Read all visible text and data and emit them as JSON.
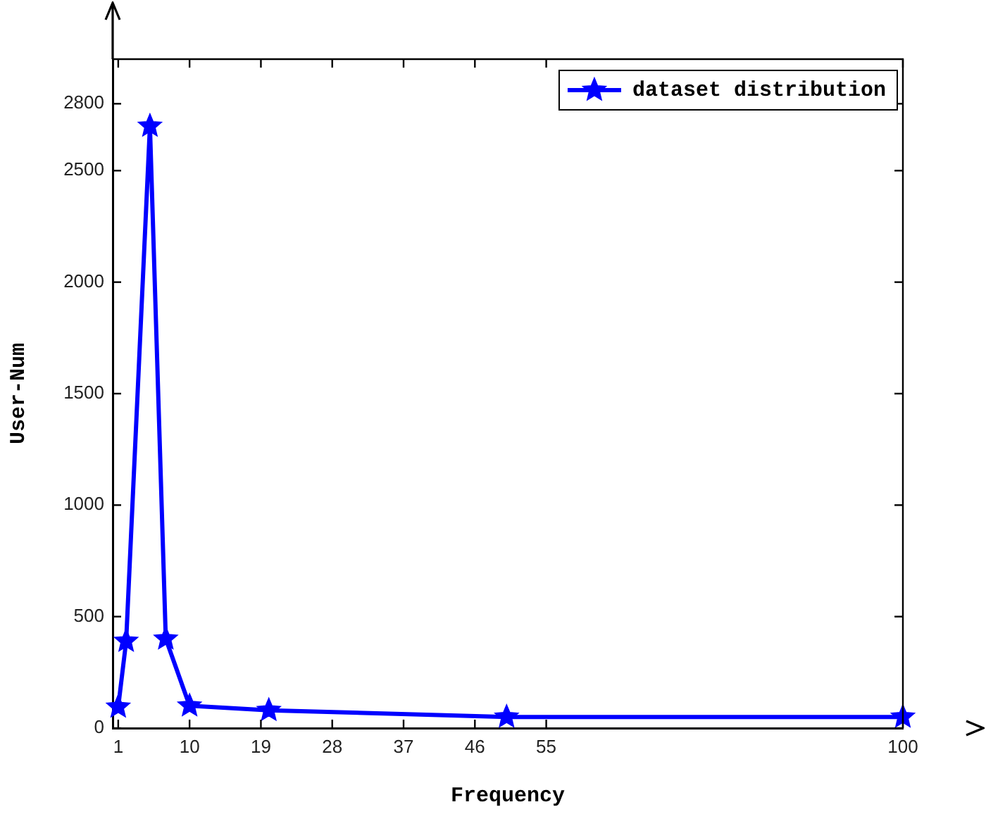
{
  "chart_data": {
    "type": "line",
    "xlabel": "Frequency",
    "ylabel": "User-Num",
    "x": [
      1,
      2,
      5,
      7,
      10,
      20,
      50,
      100
    ],
    "series": [
      {
        "name": "dataset distribution",
        "color": "#0000ff",
        "values": [
          95,
          390,
          2700,
          400,
          100,
          80,
          50,
          50
        ]
      }
    ],
    "xlim": [
      0.3,
      100
    ],
    "xticks": [
      1,
      10,
      19,
      28,
      37,
      46,
      55,
      100
    ],
    "ylim": [
      0,
      3000
    ],
    "yticks": [
      0,
      500,
      1000,
      1500,
      2000,
      2500,
      2800
    ],
    "grid": false,
    "legend": "top right",
    "marker": "star",
    "line_style": "solid"
  }
}
